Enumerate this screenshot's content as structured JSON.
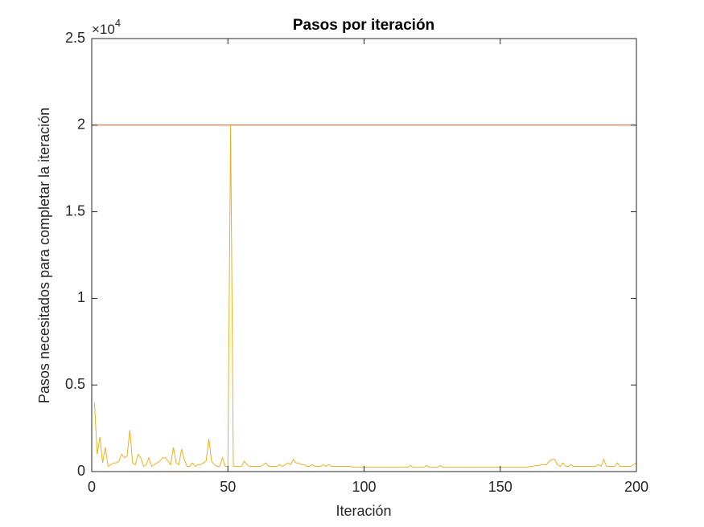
{
  "chart_data": {
    "type": "line",
    "title": "Pasos por iteración",
    "x_label": "Iteración",
    "y_label": "Pasos necesitados para completar la iteración",
    "axis_multiplier": {
      "base": "×10",
      "exponent": "4"
    },
    "xlim": [
      0,
      200
    ],
    "xticks": [
      0,
      50,
      100,
      150,
      200
    ],
    "ylim": [
      0,
      25000
    ],
    "yticks": [
      0,
      {
        "value": 5000,
        "label": "0.5"
      },
      {
        "value": 10000,
        "label": "1"
      },
      {
        "value": 15000,
        "label": "1.5"
      },
      {
        "value": 20000,
        "label": "2"
      },
      {
        "value": 25000,
        "label": "2.5"
      }
    ],
    "grid": false,
    "series": [
      {
        "color": "#D95319",
        "x": [
          0,
          200
        ],
        "values": [
          20000,
          20000
        ]
      },
      {
        "color": "#EDB120",
        "x": [
          1,
          2,
          3,
          4,
          5,
          6,
          7,
          8,
          9,
          10,
          11,
          12,
          13,
          14,
          15,
          16,
          17,
          18,
          19,
          20,
          21,
          22,
          23,
          24,
          25,
          26,
          27,
          28,
          29,
          30,
          31,
          32,
          33,
          34,
          35,
          36,
          37,
          38,
          39,
          40,
          41,
          42,
          43,
          44,
          45,
          46,
          47,
          48,
          49,
          50,
          51,
          52,
          53,
          54,
          55,
          56,
          57,
          58,
          59,
          60,
          61,
          62,
          63,
          64,
          65,
          66,
          67,
          68,
          69,
          70,
          71,
          72,
          73,
          74,
          75,
          76,
          77,
          78,
          79,
          80,
          81,
          82,
          83,
          84,
          85,
          86,
          87,
          88,
          89,
          90,
          91,
          92,
          93,
          94,
          95,
          96,
          97,
          98,
          99,
          100,
          101,
          102,
          103,
          104,
          105,
          106,
          107,
          108,
          109,
          110,
          111,
          112,
          113,
          114,
          115,
          116,
          117,
          118,
          119,
          120,
          121,
          122,
          123,
          124,
          125,
          126,
          127,
          128,
          129,
          130,
          131,
          132,
          133,
          134,
          135,
          136,
          137,
          138,
          139,
          140,
          141,
          142,
          143,
          144,
          145,
          146,
          147,
          148,
          149,
          150,
          151,
          152,
          153,
          154,
          155,
          156,
          157,
          158,
          159,
          160,
          161,
          162,
          163,
          164,
          165,
          166,
          167,
          168,
          169,
          170,
          171,
          172,
          173,
          174,
          175,
          176,
          177,
          178,
          179,
          180,
          181,
          182,
          183,
          184,
          185,
          186,
          187,
          188,
          189,
          190,
          191,
          192,
          193,
          194,
          195,
          196,
          197,
          198,
          199,
          200
        ],
        "values": [
          4000,
          1000,
          2000,
          500,
          1400,
          300,
          400,
          500,
          500,
          600,
          1000,
          800,
          900,
          2400,
          500,
          400,
          1000,
          800,
          300,
          400,
          800,
          300,
          400,
          500,
          600,
          800,
          800,
          600,
          400,
          1400,
          500,
          400,
          1300,
          700,
          300,
          300,
          500,
          300,
          400,
          400,
          500,
          600,
          1900,
          600,
          400,
          300,
          300,
          800,
          300,
          300,
          20000,
          300,
          300,
          300,
          300,
          600,
          400,
          300,
          300,
          300,
          300,
          300,
          400,
          500,
          300,
          300,
          300,
          300,
          400,
          300,
          400,
          500,
          400,
          700,
          500,
          500,
          400,
          400,
          300,
          300,
          400,
          300,
          300,
          300,
          400,
          300,
          400,
          300,
          300,
          300,
          300,
          300,
          300,
          300,
          300,
          250,
          250,
          250,
          250,
          250,
          250,
          250,
          250,
          250,
          250,
          250,
          250,
          250,
          250,
          250,
          250,
          250,
          250,
          250,
          250,
          250,
          350,
          250,
          250,
          250,
          250,
          250,
          350,
          250,
          250,
          250,
          250,
          350,
          250,
          250,
          250,
          250,
          250,
          250,
          250,
          250,
          250,
          250,
          250,
          250,
          250,
          250,
          250,
          250,
          250,
          250,
          250,
          250,
          250,
          250,
          250,
          250,
          250,
          250,
          250,
          250,
          250,
          250,
          250,
          250,
          300,
          300,
          350,
          350,
          400,
          400,
          400,
          600,
          700,
          700,
          400,
          300,
          500,
          300,
          300,
          400,
          300,
          300,
          300,
          300,
          300,
          300,
          300,
          300,
          300,
          400,
          300,
          700,
          300,
          300,
          300,
          300,
          500,
          300,
          300,
          300,
          300,
          300,
          400,
          500
        ]
      }
    ]
  }
}
